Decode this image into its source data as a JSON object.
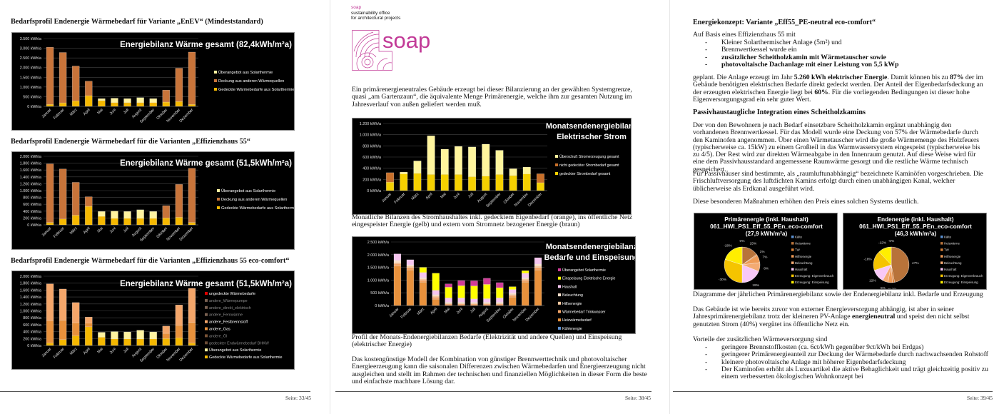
{
  "left": {
    "heading1": "Bedarfsprofil Endenergie Wärmebedarf für Variante „EnEV“ (Mindeststandard)",
    "heading2": "Bedarfsprofil Endenergie Wärmebedarf für die Varianten „Effizienzhaus 55“",
    "heading3": "Bedarfsprofil Endenergie Wärmebedarf für die Varianten „Effizienzhaus 55 eco-comfort“",
    "footer": "Seite: 33/45"
  },
  "middle": {
    "logo_small": "soap",
    "logo_line1": "sustainability office",
    "logo_line2": "for architectural projects",
    "logo_big": "soap",
    "logo_color": "#c23a97",
    "para1": "Ein primärenergieneutrales Gebäude erzeugt bei dieser Bilanzierung an der gewählten Systemgrenze, quasi „am Gartenzaun“, die äquivalente Menge Primärenergie, welche ihm zur gesamten Nutzung im Jahresverlauf von außen geliefert werden muß.",
    "caption1": "Monatliche Bilanzen des Stromhaushaltes inkl. gedecktem Eigenbedarf (orange), ins öffentliche Netz eingespeister Energie (gelb) und extern vom Stromnetz bezogener Energie (braun)",
    "caption2": "Profil der Monats-Endenergiebilanzen Bedarfe (Elektrizität und andere Quellen) und Einspeisung (elektrischer Energie)",
    "para2": "Das kostengünstige Modell der Kombination von günstiger Brennwerttechnik und photovoltaischer Energieerzeugung kann die saisonalen Differenzen zwischen Wärmebedarfen und Energieerzeugung nicht ausgleichen und stellt im Rahmen der technischen und finanziellen Möglichkeiten in dieser Form die beste und einfachste machbare Lösung dar.",
    "footer": "Seite: 38/45"
  },
  "right": {
    "title": "Energiekonzept: Variante „Eff55_PE-neutral eco-comfort“",
    "intro": "Auf Basis eines Effizienzhaus 55 mit",
    "bullets1": [
      "Kleiner Solarthermischer Anlage (5m²) und",
      "Brennwertkessel wurde ein",
      "zusätzlicher Scheitholzkamin mit Wärmetauscher sowie",
      "photovoltaische Dachanlage mit einer Leistung von 5,5 kWp"
    ],
    "para1": [
      "geplant. Die Anlage erzeugt im Jahr ",
      {
        "b": "5.260 kWh elektrischer Energie"
      },
      ". Damit können bis zu ",
      {
        "b": "87%"
      },
      " der im Gebäude benötigten elektrischen Bedarfe direkt gedeckt werden. Der Anteil der Eigenbedarfsdeckung an der erzeugten elektrischen Energie liegt bei ",
      {
        "b": "60%"
      },
      ". Für die vorliegenden Bedingungen ist dieser hohe Eigenversorgungsgrad ein sehr guter Wert."
    ],
    "heading2": "Passivhaustaugliche Integration eines Scheitholzkamins",
    "para2": "Der von den Bewohnern je nach Bedarf einsetzbare Scheitholzkamin ergänzt unabhängig den vorhandenen Brennwertkessel. Für das Modell wurde eine Deckung von 57% der Wärmebedarfe durch den Kaminofen angenommen. Über einen Wärmetauscher wird die große Wärmemenge des Holzfeuers (typischerweise ca. 15kW) zu einem Großteil in das Warmwassersystem eingespeist (typischerweise bis zu 4/5). Der Rest wird zur direkten Wärmeabgabe in den Innenraum genutzt. Auf diese Weise wird für eine dem Passivhausstandard angemessene Raumwärme gesorgt und die restliche Wärme technisch gespeichert.",
    "para3": "Für Passivhäuser sind bestimmte, als „raumluftunabhängig“ bezeichnete Kaminöfen vorgeschrieben. Die Frischluftversorgung des luftdichten Kamins erfolgt durch einen unabhängigen Kanal, welcher üblicherweise als Erdkanal ausgeführt wird.",
    "para4": "Diese besonderen Maßnahmen erhöhen den Preis eines solchen Systems deutlich.",
    "caption": "Diagramme der jährlichen Primärenergiebilanz sowie der Endenergiebilanz inkl. Bedarfe und Erzeugung",
    "para5": [
      "Das Gebäude ist wie bereits zuvor von externer Energieversorgung abhängig, ist aber in seiner Jahresprimärenergiebilanz trotz der kleineren PV-Anlage ",
      {
        "b": "energieneutral"
      },
      " und speist den nicht selbst genutzten Strom (40%) vergütet ins öffentliche Netz ein."
    ],
    "vorteile": "Vorteile der zusätzlichen Wärmeversorgung sind",
    "bullets2": [
      "geringere Brennstoffkosten (ca. 6ct/kWh gegenüber 9ct/kWh bei Erdgas)",
      "geringerer Primärenergieanteil zur Deckung der Wärmebedarfe durch nachwachsenden Rohstoff",
      "kleinere photovoltaische Anlage mit höherer Eigenbedarfsdeckung",
      "Der Kaminofen erhöht als Luxusartikel die aktive Behaglichkeit und trägt gleichzeitig positiv zu einem verbesserten ökologischen Wohnkonzept bei"
    ],
    "footer": "Seite: 39/45"
  },
  "chart_data": [
    {
      "type": "bar",
      "stacked": true,
      "title": [
        "Energiebilanz Wärme gesamt (82,4kWh/m²a)"
      ],
      "categories": [
        "Januar",
        "Februar",
        "März",
        "April",
        "Mai",
        "Juni",
        "Juli",
        "August",
        "September",
        "Oktober",
        "November",
        "Dezember"
      ],
      "ylim": [
        0,
        3500
      ],
      "y_ticks": [
        "0 kWh/a",
        "500 kWh/a",
        "1.000 kWh/a",
        "1.500 kWh/a",
        "2.000 kWh/a",
        "2.500 kWh/a",
        "3.000 kWh/a",
        "3.500 kWh/a"
      ],
      "series": [
        {
          "name": "Gedeckte Wärmebedarfe aus Solarthermie",
          "color": "#f5b800",
          "values": [
            100,
            180,
            280,
            550,
            300,
            200,
            200,
            200,
            200,
            220,
            250,
            100
          ]
        },
        {
          "name": "Deckung aus anderen Wärmequellen",
          "color": "#c8743a",
          "values": [
            2950,
            2600,
            1800,
            750,
            0,
            0,
            0,
            0,
            0,
            620,
            1720,
            2700
          ]
        },
        {
          "name": "Überangebot aus Solarthermie",
          "color": "#fff3a0",
          "values": [
            0,
            0,
            0,
            0,
            100,
            220,
            200,
            250,
            200,
            0,
            0,
            0
          ]
        }
      ]
    },
    {
      "type": "bar",
      "stacked": true,
      "title": [
        "Energiebilanz Wärme gesamt (51,5kWh/m²a)"
      ],
      "categories": [
        "Januar",
        "Februar",
        "März",
        "April",
        "Mai",
        "Juni",
        "Juli",
        "August",
        "September",
        "Oktober",
        "November",
        "Dezember"
      ],
      "ylim": [
        0,
        2000
      ],
      "y_ticks": [
        "0 kWh/a",
        "200 kWh/a",
        "400 kWh/a",
        "600 kWh/a",
        "800 kWh/a",
        "1.000 kWh/a",
        "1.200 kWh/a",
        "1.400 kWh/a",
        "1.600 kWh/a",
        "1.800 kWh/a",
        "2.000 kWh/a"
      ],
      "series": [
        {
          "name": "Gedeckte Wärmebedarfe aus Solarthermie",
          "color": "#f5b800",
          "values": [
            70,
            170,
            280,
            540,
            250,
            190,
            190,
            190,
            190,
            200,
            220,
            70
          ]
        },
        {
          "name": "Deckung aus anderen Wärmequellen",
          "color": "#c8743a",
          "values": [
            1710,
            1460,
            960,
            280,
            0,
            0,
            0,
            0,
            0,
            360,
            960,
            1580
          ]
        },
        {
          "name": "Überangebot aus Solarthermie",
          "color": "#fff3a0",
          "values": [
            0,
            0,
            0,
            0,
            140,
            210,
            200,
            250,
            200,
            0,
            0,
            0
          ]
        }
      ]
    },
    {
      "type": "bar",
      "stacked": true,
      "title": [
        "Energiebilanz Wärme gesamt (51,5kWh/m²a)"
      ],
      "categories": [
        "Januar",
        "Februar",
        "März",
        "April",
        "Mai",
        "Juni",
        "Juli",
        "August",
        "September",
        "Oktober",
        "November",
        "Dezember"
      ],
      "ylim": [
        0,
        2000
      ],
      "y_ticks": [
        "0 kWh/a",
        "200 kWh/a",
        "400 kWh/a",
        "600 kWh/a",
        "800 kWh/a",
        "1.000 kWh/a",
        "1.200 kWh/a",
        "1.400 kWh/a",
        "1.600 kWh/a",
        "1.800 kWh/a",
        "2.000 kWh/a"
      ],
      "series": [
        {
          "name": "Gedeckte Wärmebedarfe aus Solarthermie",
          "color": "#f5b800",
          "text_color": "#ffffff",
          "values": [
            70,
            170,
            280,
            540,
            240,
            190,
            190,
            190,
            190,
            200,
            220,
            70
          ]
        },
        {
          "name": "Überangebot aus Solarthermie",
          "color": "#fff3a0",
          "text_color": "#ffffff",
          "values": [
            0,
            0,
            0,
            0,
            140,
            210,
            200,
            250,
            200,
            0,
            0,
            0
          ]
        },
        {
          "name": "gedeckter Endwärmebedarf BHKW",
          "color": "#6b4c36",
          "text_color": "#8a8a8a",
          "values": [
            0,
            0,
            0,
            0,
            0,
            0,
            0,
            0,
            0,
            0,
            0,
            0
          ]
        },
        {
          "name": "andere_Öl",
          "color": "#7a5336",
          "text_color": "#8a8a8a",
          "values": [
            0,
            0,
            0,
            0,
            0,
            0,
            0,
            0,
            0,
            0,
            0,
            0
          ]
        },
        {
          "name": "andere_Gas",
          "color": "#e8913c",
          "text_color": "#ffffff",
          "values": [
            650,
            560,
            380,
            110,
            0,
            0,
            0,
            0,
            0,
            150,
            360,
            600
          ]
        },
        {
          "name": "andere_Festbrennstoff",
          "color": "#f4a66a",
          "text_color": "#ffffff",
          "values": [
            1060,
            900,
            580,
            170,
            0,
            0,
            0,
            0,
            0,
            210,
            590,
            980
          ]
        },
        {
          "name": "andere_Fernwärme",
          "color": "#7a6152",
          "text_color": "#8a8a8a",
          "values": [
            0,
            0,
            0,
            0,
            0,
            0,
            0,
            0,
            0,
            0,
            0,
            0
          ]
        },
        {
          "name": "andere_direkt_elektrisch",
          "color": "#7a6152",
          "text_color": "#8a8a8a",
          "values": [
            0,
            0,
            0,
            0,
            0,
            0,
            0,
            0,
            0,
            0,
            0,
            0
          ]
        },
        {
          "name": "andere_Wärmepumpe",
          "color": "#7a6152",
          "text_color": "#8a8a8a",
          "values": [
            0,
            0,
            0,
            0,
            0,
            0,
            0,
            0,
            0,
            0,
            0,
            0
          ]
        },
        {
          "name": "ungedeckte Wärmebedarfe",
          "color": "#e00000",
          "text_color": "#ffffff",
          "values": [
            0,
            0,
            0,
            0,
            0,
            0,
            0,
            0,
            0,
            0,
            0,
            0
          ]
        }
      ]
    },
    {
      "type": "bar",
      "stacked": true,
      "title": [
        "Monatsendenergiebilanz",
        "Elektrischer Strom"
      ],
      "categories": [
        "Januar",
        "Februar",
        "März",
        "April",
        "Mai",
        "Juni",
        "Juli",
        "August",
        "September",
        "Oktober",
        "November",
        "Dezember"
      ],
      "ylim": [
        0,
        1200
      ],
      "y_ticks": [
        "0 kWh/a",
        "200 kWh/a",
        "400 kWh/a",
        "600 kWh/a",
        "800 kWh/a",
        "1.000 kWh/a",
        "1.200 kWh/a"
      ],
      "series": [
        {
          "name": "gedeckter Strombedarf gesamt",
          "color": "#f5d000",
          "values": [
            150,
            300,
            310,
            290,
            290,
            290,
            250,
            260,
            290,
            270,
            300,
            140
          ]
        },
        {
          "name": "nicht gedeckter Strombedarf gesamt",
          "color": "#c8702a",
          "values": [
            170,
            0,
            0,
            0,
            0,
            0,
            0,
            0,
            0,
            0,
            0,
            160
          ]
        },
        {
          "name": "Überschuß Stromerzeugung gesamt",
          "color": "#fff59d",
          "values": [
            0,
            30,
            220,
            690,
            450,
            500,
            530,
            570,
            430,
            120,
            120,
            0
          ]
        }
      ]
    },
    {
      "type": "bar",
      "stacked": true,
      "title": [
        "Monatsendenergiebilanz",
        "Bedarfe und Einspeisung"
      ],
      "categories": [
        "Januar",
        "Februar",
        "März",
        "April",
        "Mai",
        "Juni",
        "Juli",
        "August",
        "September",
        "Oktober",
        "November",
        "Dezember"
      ],
      "ylim": [
        0,
        2500
      ],
      "y_ticks": [
        "0 kWh/a",
        "500 kWh/a",
        "1.000 kWh/a",
        "1.500 kWh/a",
        "2.000 kWh/a",
        "2.500 kWh/a"
      ],
      "series": [
        {
          "name": "Kühlenergie",
          "color": "#5b8fd0",
          "values": [
            0,
            0,
            0,
            0,
            0,
            0,
            0,
            0,
            0,
            0,
            0,
            0
          ]
        },
        {
          "name": "Heizwärmebedarf",
          "color": "#e8913c",
          "values": [
            1550,
            1400,
            920,
            250,
            0,
            0,
            0,
            0,
            0,
            330,
            920,
            1400
          ]
        },
        {
          "name": "Wärmebedarf Trinkwasser",
          "color": "#f4a66a",
          "values": [
            100,
            100,
            80,
            80,
            60,
            60,
            60,
            60,
            60,
            70,
            80,
            100
          ]
        },
        {
          "name": "Hilfsenergie",
          "color": "#f8c8a0",
          "values": [
            50,
            50,
            50,
            50,
            40,
            40,
            40,
            40,
            40,
            40,
            50,
            50
          ]
        },
        {
          "name": "Beleuchtung",
          "color": "#fbe0cc",
          "values": [
            80,
            50,
            50,
            50,
            30,
            30,
            30,
            30,
            30,
            50,
            50,
            80
          ]
        },
        {
          "name": "Haushalt",
          "color": "#f6c6f0",
          "values": [
            250,
            200,
            200,
            170,
            170,
            170,
            130,
            140,
            170,
            140,
            170,
            250
          ]
        },
        {
          "name": "Einspeisung Elektrische Energie",
          "color": "#ffff00",
          "values": [
            0,
            0,
            200,
            670,
            420,
            480,
            510,
            560,
            400,
            110,
            100,
            0
          ]
        },
        {
          "name": "Überangebot Solarthermie",
          "color": "#d03c98",
          "values": [
            0,
            0,
            0,
            0,
            130,
            200,
            200,
            240,
            200,
            0,
            0,
            0
          ]
        }
      ]
    },
    {
      "type": "pie",
      "title": [
        "Primärenergie (inkl. Haushalt)",
        "061_HWI_PS1_Eff_55_PEn_eco-comfort",
        "(27,9 kWh/m²a)"
      ],
      "slices": [
        {
          "name": "Kälte",
          "color": "#5b8fd0",
          "value": 0,
          "label": "0%"
        },
        {
          "name": "Heizwärme",
          "color": "#b8733a",
          "value": 15,
          "label": "15%"
        },
        {
          "name": "TW",
          "color": "#d9803a",
          "value": 1,
          "label": "1%"
        },
        {
          "name": "Hilfsenergie",
          "color": "#ee9a55",
          "value": 7,
          "label": "7%"
        },
        {
          "name": "Beleuchtung",
          "color": "#f3aa72",
          "value": 8,
          "label": "8%"
        },
        {
          "name": "Haushalt",
          "color": "#f8c8f6",
          "value": 19,
          "label": "19%"
        },
        {
          "name": "Erzeugung: Eigenverbrauch",
          "color": "#f5c400",
          "value": -30,
          "label": "-30%"
        },
        {
          "name": "Erzeugung: Einspeisung",
          "color": "#ffee00",
          "value": -20,
          "label": "-20%"
        }
      ]
    },
    {
      "type": "pie",
      "title": [
        "Endenergie (inkl. Haushalt)",
        "061_HWI_PS1_Eff_55_PEn_eco-comfort",
        "(46,3 kWh/m²a)"
      ],
      "slices": [
        {
          "name": "Kälte",
          "color": "#5b8fd0",
          "value": 0,
          "label": "-0%"
        },
        {
          "name": "Heizwärme",
          "color": "#b8733a",
          "value": 47,
          "label": "47%"
        },
        {
          "name": "TW",
          "color": "#d9803a",
          "value": 2,
          "label": "2%"
        },
        {
          "name": "Hilfsenergie",
          "color": "#ee9a55",
          "value": 4,
          "label": "4%"
        },
        {
          "name": "Beleuchtung",
          "color": "#f3aa72",
          "value": 5,
          "label": "5%"
        },
        {
          "name": "Haushalt",
          "color": "#f8c8f6",
          "value": 12,
          "label": "12%"
        },
        {
          "name": "Erzeugung: Eigenverbrauch",
          "color": "#f5c400",
          "value": -18,
          "label": "-18%"
        },
        {
          "name": "Erzeugung: Einspeisung",
          "color": "#ffee00",
          "value": -12,
          "label": "-12%"
        }
      ]
    }
  ]
}
